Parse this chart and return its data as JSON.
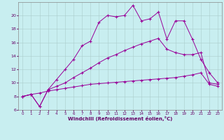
{
  "xlabel": "Windchill (Refroidissement éolien,°C)",
  "background_color": "#c8eef0",
  "line_color": "#990099",
  "grid_color": "#aacccc",
  "xlim": [
    -0.5,
    23.5
  ],
  "ylim": [
    6,
    22
  ],
  "yticks": [
    6,
    8,
    10,
    12,
    14,
    16,
    18,
    20
  ],
  "xticks": [
    0,
    1,
    2,
    3,
    4,
    5,
    6,
    7,
    8,
    9,
    10,
    11,
    12,
    13,
    14,
    15,
    16,
    17,
    18,
    19,
    20,
    21,
    22,
    23
  ],
  "line1_x": [
    0,
    1,
    2,
    3,
    4,
    5,
    6,
    7,
    8,
    9,
    10,
    11,
    12,
    13,
    14,
    15,
    16,
    17,
    18,
    19,
    20,
    21,
    22,
    23
  ],
  "line1_y": [
    8.0,
    8.3,
    8.5,
    8.8,
    9.0,
    9.2,
    9.4,
    9.6,
    9.8,
    9.9,
    10.0,
    10.1,
    10.2,
    10.3,
    10.4,
    10.5,
    10.6,
    10.7,
    10.8,
    11.0,
    11.2,
    11.5,
    9.8,
    9.5
  ],
  "line2_x": [
    0,
    1,
    2,
    3,
    4,
    5,
    6,
    7,
    8,
    9,
    10,
    11,
    12,
    13,
    14,
    15,
    16,
    17,
    18,
    19,
    20,
    21,
    22,
    23
  ],
  "line2_y": [
    8.0,
    8.3,
    6.5,
    9.0,
    9.5,
    10.0,
    10.8,
    11.5,
    12.2,
    13.0,
    13.7,
    14.2,
    14.8,
    15.3,
    15.8,
    16.2,
    16.6,
    15.0,
    14.5,
    14.2,
    14.2,
    14.5,
    10.0,
    9.8
  ],
  "line3_x": [
    0,
    1,
    2,
    3,
    4,
    5,
    6,
    7,
    8,
    9,
    10,
    11,
    12,
    13,
    14,
    15,
    16,
    17,
    18,
    19,
    20,
    21,
    22,
    23
  ],
  "line3_y": [
    8.0,
    8.3,
    6.5,
    9.0,
    10.5,
    12.0,
    13.5,
    15.5,
    16.2,
    19.0,
    20.0,
    19.8,
    20.0,
    21.5,
    19.2,
    19.5,
    20.5,
    16.5,
    19.2,
    19.2,
    16.5,
    13.5,
    11.5,
    10.0
  ]
}
